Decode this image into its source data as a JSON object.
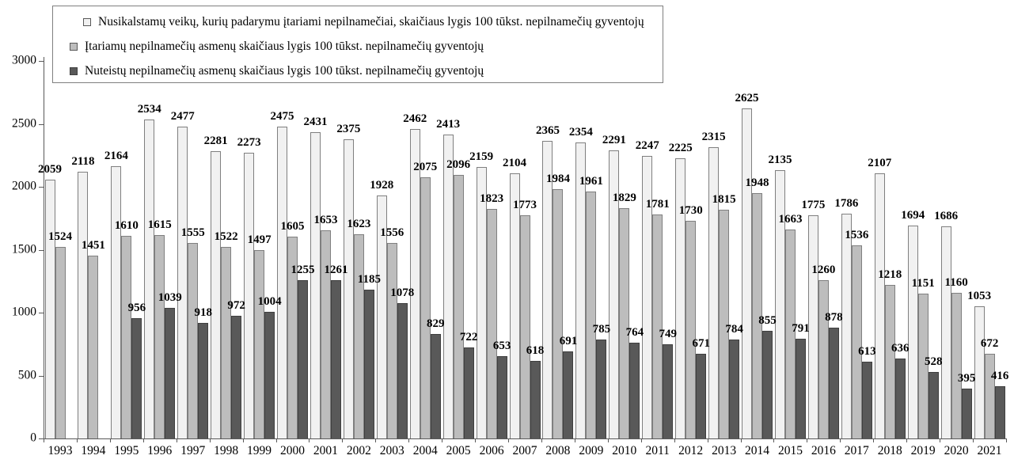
{
  "chart_data": {
    "type": "bar",
    "title": "",
    "xlabel": "",
    "ylabel": "",
    "ylim": [
      0,
      3000
    ],
    "y_ticks": [
      0,
      500,
      1000,
      1500,
      2000,
      2500,
      3000
    ],
    "grid": false,
    "legend_position": "top-left",
    "data_labels": true,
    "categories": [
      "1993",
      "1994",
      "1995",
      "1996",
      "1997",
      "1998",
      "1999",
      "2000",
      "2001",
      "2002",
      "2003",
      "2004",
      "2005",
      "2006",
      "2007",
      "2008",
      "2009",
      "2010",
      "2011",
      "2012",
      "2013",
      "2014",
      "2015",
      "2016",
      "2017",
      "2018",
      "2019",
      "2020",
      "2021"
    ],
    "series": [
      {
        "name": "Nusikalstamų veikų, kurių padarymu įtariami nepilnamečiai, skaičiaus lygis 100 tūkst. nepilnamečių gyventojų",
        "fill": "#f1f1f1",
        "border": "#7f7f7f",
        "values": [
          2059,
          2118,
          2164,
          2534,
          2477,
          2281,
          2273,
          2475,
          2431,
          2375,
          1928,
          2462,
          2413,
          2159,
          2104,
          2365,
          2354,
          2291,
          2247,
          2225,
          2315,
          2625,
          2135,
          1775,
          1786,
          2107,
          1694,
          1686,
          1053
        ]
      },
      {
        "name": "Įtariamų nepilnamečių asmenų skaičiaus lygis 100 tūkst. nepilnamečių gyventojų",
        "fill": "#bdbdbd",
        "border": "#7f7f7f",
        "values": [
          1524,
          1451,
          1610,
          1615,
          1555,
          1522,
          1497,
          1605,
          1653,
          1623,
          1556,
          2075,
          2096,
          1823,
          1773,
          1984,
          1961,
          1829,
          1781,
          1730,
          1815,
          1948,
          1663,
          1260,
          1536,
          1218,
          1151,
          1160,
          672
        ]
      },
      {
        "name": "Nuteistų nepilnamečių asmenų skaičiaus lygis 100 tūkst. nepilnamečių gyventojų",
        "fill": "#595959",
        "border": "#3f3f3f",
        "values": [
          null,
          null,
          956,
          1039,
          918,
          972,
          1004,
          1255,
          1261,
          1185,
          1078,
          829,
          722,
          653,
          618,
          691,
          785,
          764,
          749,
          671,
          784,
          855,
          791,
          878,
          613,
          636,
          528,
          395,
          416
        ]
      }
    ],
    "axis_color": "#595959",
    "text_color": "#000000"
  }
}
